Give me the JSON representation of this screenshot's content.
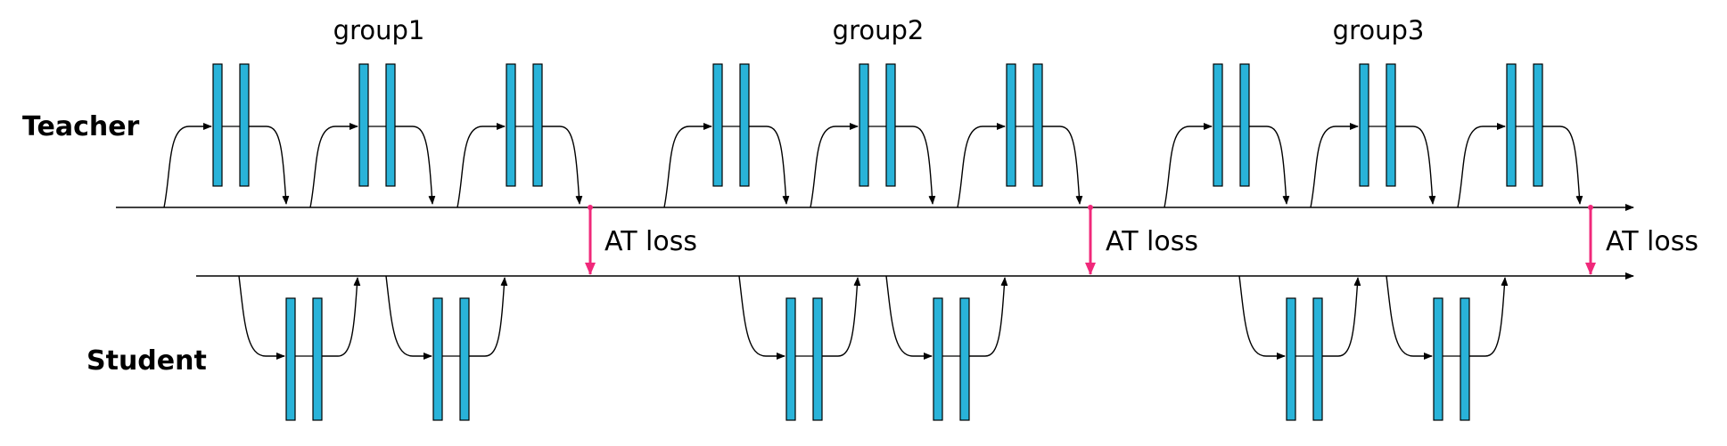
{
  "roles": {
    "teacher": "Teacher",
    "student": "Student"
  },
  "groups": [
    "group1",
    "group2",
    "group3"
  ],
  "loss_label": "AT loss",
  "colors": {
    "block_fill": "#29b3d9",
    "block_stroke": "#000000",
    "loss_arrow": "#f0287a",
    "line": "#000000"
  },
  "structure": {
    "teacher_blocks_per_group": 3,
    "student_blocks_per_group": 2,
    "layers_per_block": 2
  }
}
